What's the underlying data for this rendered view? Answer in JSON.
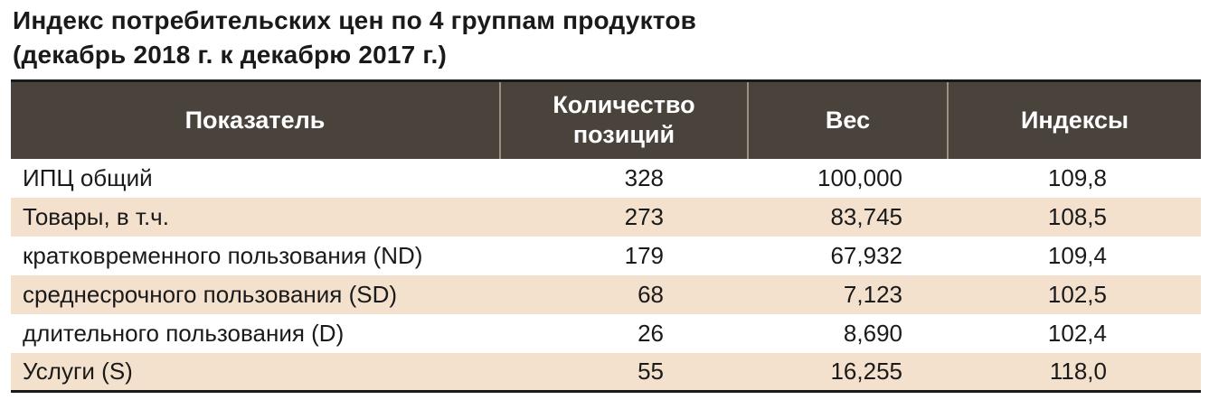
{
  "title": {
    "line1": "Индекс потребительских цен по 4 группам продуктов",
    "line2": "(декабрь 2018 г. к декабрю 2017 г.)"
  },
  "table": {
    "headers": {
      "indicator": "Показатель",
      "count_line1": "Количество",
      "count_line2": "позиций",
      "weight": "Вес",
      "index": "Индексы"
    },
    "rows": [
      {
        "name": "ИПЦ общий",
        "count": "328",
        "weight": "100,000",
        "index": "109,8"
      },
      {
        "name": "Товары, в т.ч.",
        "count": "273",
        "weight": "83,745",
        "index": "108,5"
      },
      {
        "name": "кратковременного пользования (ND)",
        "count": "179",
        "weight": "67,932",
        "index": "109,4"
      },
      {
        "name": "среднесрочного пользования (SD)",
        "count": "68",
        "weight": "7,123",
        "index": "102,5"
      },
      {
        "name": "длительного пользования (D)",
        "count": "26",
        "weight": "8,690",
        "index": "102,4"
      },
      {
        "name": "Услуги (S)",
        "count": "55",
        "weight": "16,255",
        "index": "118,0"
      }
    ]
  },
  "colors": {
    "header_bg": "#4a433c",
    "stripe_bg": "#f3e1cd"
  }
}
